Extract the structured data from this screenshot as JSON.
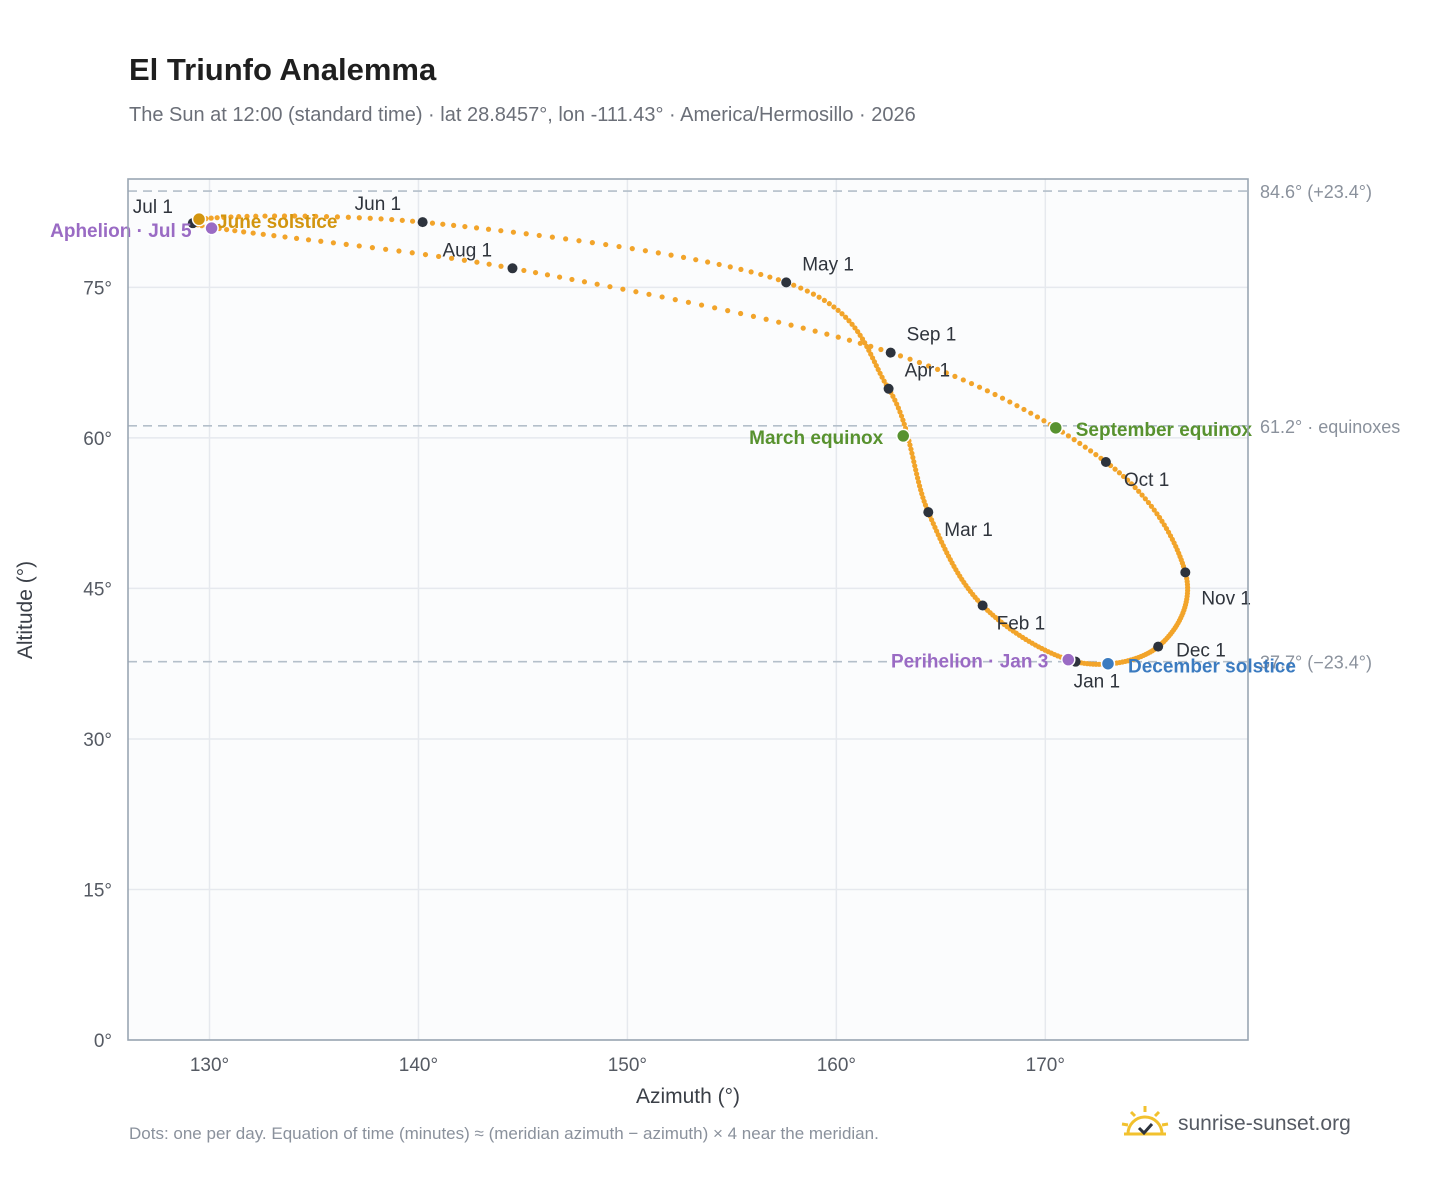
{
  "header": {
    "title": "El Triunfo Analemma",
    "subtitle": "The Sun at 12:00 (standard time) · lat 28.8457°, lon -111.43° · America/Hermosillo · 2026"
  },
  "footer": {
    "note": "Dots: one per day. Equation of time (minutes) ≈ (meridian azimuth − azimuth) × 4 near the meridian.",
    "brand": "sunrise-sunset.org"
  },
  "colors": {
    "accent": "#f2a42a",
    "month_dot": "#2d333d",
    "solstice_june": "#d2950f",
    "solstice_december": "#3b7bc0",
    "equinox": "#58922f",
    "apsis": "#9a6bc4",
    "ref_line": "#b4bfca",
    "grid": "#e6e9ee",
    "plot_bg": "#fbfcfd"
  },
  "chart_data": {
    "type": "scatter",
    "xlabel": "Azimuth (°)",
    "ylabel": "Altitude (°)",
    "xlim": [
      126.1,
      179.7
    ],
    "ylim": [
      0,
      85.8
    ],
    "xticks": [
      130,
      140,
      150,
      160,
      170
    ],
    "xtick_labels": [
      "130°",
      "140°",
      "150°",
      "160°",
      "170°"
    ],
    "yticks": [
      0,
      15,
      30,
      45,
      60,
      75
    ],
    "ytick_labels": [
      "0°",
      "15°",
      "30°",
      "45°",
      "60°",
      "75°"
    ],
    "grid": true,
    "reference_lines": [
      {
        "y": 84.6,
        "label": "84.6° (+23.4°)"
      },
      {
        "y": 61.2,
        "label": "61.2° · equinoxes"
      },
      {
        "y": 37.7,
        "label": "37.7° (−23.4°)"
      }
    ],
    "series": [
      {
        "points_az_alt": [
          [
            171.45,
            37.7
          ],
          [
            167.0,
            43.3
          ],
          [
            164.4,
            52.6
          ],
          [
            162.5,
            64.9
          ],
          [
            157.6,
            75.5
          ],
          [
            140.2,
            81.5
          ],
          [
            129.2,
            81.4
          ],
          [
            144.5,
            76.9
          ],
          [
            162.6,
            68.5
          ],
          [
            172.9,
            57.6
          ],
          [
            176.7,
            46.6
          ],
          [
            175.4,
            39.2
          ]
        ]
      }
    ],
    "month_markers": [
      {
        "label": "Jan 1",
        "az": 171.45,
        "alt": 37.7
      },
      {
        "label": "Feb 1",
        "az": 167.0,
        "alt": 43.3
      },
      {
        "label": "Mar 1",
        "az": 164.4,
        "alt": 52.6
      },
      {
        "label": "Apr 1",
        "az": 162.5,
        "alt": 64.9
      },
      {
        "label": "May 1",
        "az": 157.6,
        "alt": 75.5
      },
      {
        "label": "Jun 1",
        "az": 140.2,
        "alt": 81.5
      },
      {
        "label": "Jul 1",
        "az": 129.2,
        "alt": 81.4
      },
      {
        "label": "Aug 1",
        "az": 144.5,
        "alt": 76.9
      },
      {
        "label": "Sep 1",
        "az": 162.6,
        "alt": 68.5
      },
      {
        "label": "Oct 1",
        "az": 172.9,
        "alt": 57.6
      },
      {
        "label": "Nov 1",
        "az": 176.7,
        "alt": 46.6
      },
      {
        "label": "Dec 1",
        "az": 175.4,
        "alt": 39.2
      }
    ],
    "events": [
      {
        "label": "June solstice",
        "az": 129.5,
        "alt": 81.8,
        "color": "solstice_june"
      },
      {
        "label": "Aphelion · Jul 5",
        "az": 130.1,
        "alt": 80.9,
        "color": "apsis"
      },
      {
        "label": "March equinox",
        "az": 163.2,
        "alt": 60.2,
        "color": "equinox"
      },
      {
        "label": "September equinox",
        "az": 170.5,
        "alt": 61.0,
        "color": "equinox"
      },
      {
        "label": "Perihelion · Jan 3",
        "az": 171.1,
        "alt": 37.9,
        "color": "apsis"
      },
      {
        "label": "December solstice",
        "az": 173.0,
        "alt": 37.5,
        "color": "solstice_december"
      }
    ]
  }
}
